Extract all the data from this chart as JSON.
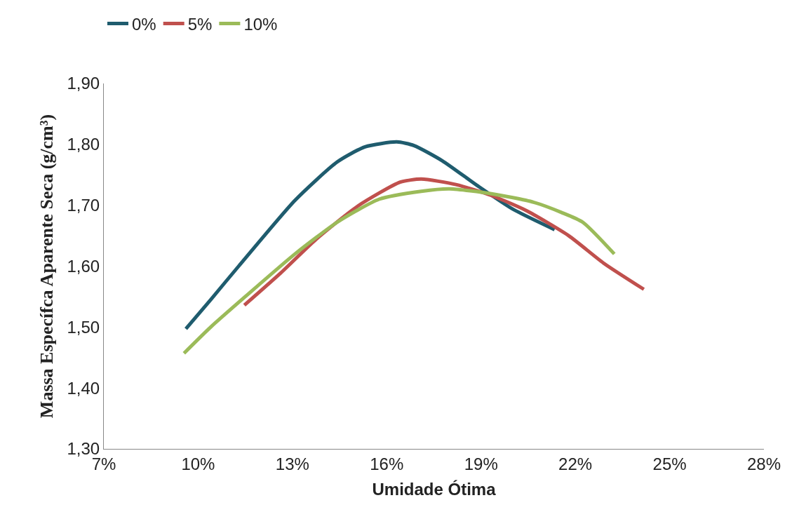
{
  "chart_data": {
    "type": "line",
    "xlabel": "Umidade Ótima",
    "ylabel": "Massa Específca Aparente Seca (g/cm³)",
    "xlim": [
      7,
      28
    ],
    "xticks": [
      {
        "value": 7,
        "label": "7%"
      },
      {
        "value": 10,
        "label": "10%"
      },
      {
        "value": 13,
        "label": "13%"
      },
      {
        "value": 16,
        "label": "16%"
      },
      {
        "value": 19,
        "label": "19%"
      },
      {
        "value": 22,
        "label": "22%"
      },
      {
        "value": 25,
        "label": "25%"
      },
      {
        "value": 28,
        "label": "28%"
      }
    ],
    "ylim": [
      1.3,
      1.9
    ],
    "yticks": [
      {
        "value": 1.3,
        "label": "1,30"
      },
      {
        "value": 1.4,
        "label": "1,40"
      },
      {
        "value": 1.5,
        "label": "1,50"
      },
      {
        "value": 1.6,
        "label": "1,60"
      },
      {
        "value": 1.7,
        "label": "1,70"
      },
      {
        "value": 1.8,
        "label": "1,80"
      },
      {
        "value": 1.9,
        "label": "1,90"
      }
    ],
    "grid": false,
    "legend": "top",
    "marker": "none",
    "line_style": "solid",
    "series": [
      {
        "name": "0%",
        "color": "#1f5c6e",
        "x": [
          9.61,
          10.4,
          11.29,
          13.08,
          14.42,
          15.31,
          16.32,
          16.87,
          17.77,
          18.89,
          20.0,
          21.34
        ],
        "values": [
          1.497,
          1.545,
          1.6,
          1.708,
          1.771,
          1.796,
          1.804,
          1.798,
          1.773,
          1.732,
          1.694,
          1.66
        ]
      },
      {
        "name": "5%",
        "color": "#c0504d",
        "x": [
          11.47,
          12.63,
          13.75,
          15.09,
          16.43,
          17.1,
          18.2,
          19.33,
          20.45,
          21.79,
          22.9,
          24.18
        ],
        "values": [
          1.536,
          1.589,
          1.644,
          1.699,
          1.738,
          1.743,
          1.734,
          1.716,
          1.691,
          1.65,
          1.605,
          1.562
        ]
      },
      {
        "name": "10%",
        "color": "#9bbb59",
        "x": [
          9.55,
          10.4,
          11.5,
          13.08,
          14.42,
          15.76,
          17.1,
          18.0,
          19.33,
          20.67,
          21.57,
          22.24,
          23.24
        ],
        "values": [
          1.457,
          1.5,
          1.55,
          1.62,
          1.672,
          1.71,
          1.723,
          1.727,
          1.719,
          1.705,
          1.688,
          1.672,
          1.62
        ]
      }
    ]
  }
}
